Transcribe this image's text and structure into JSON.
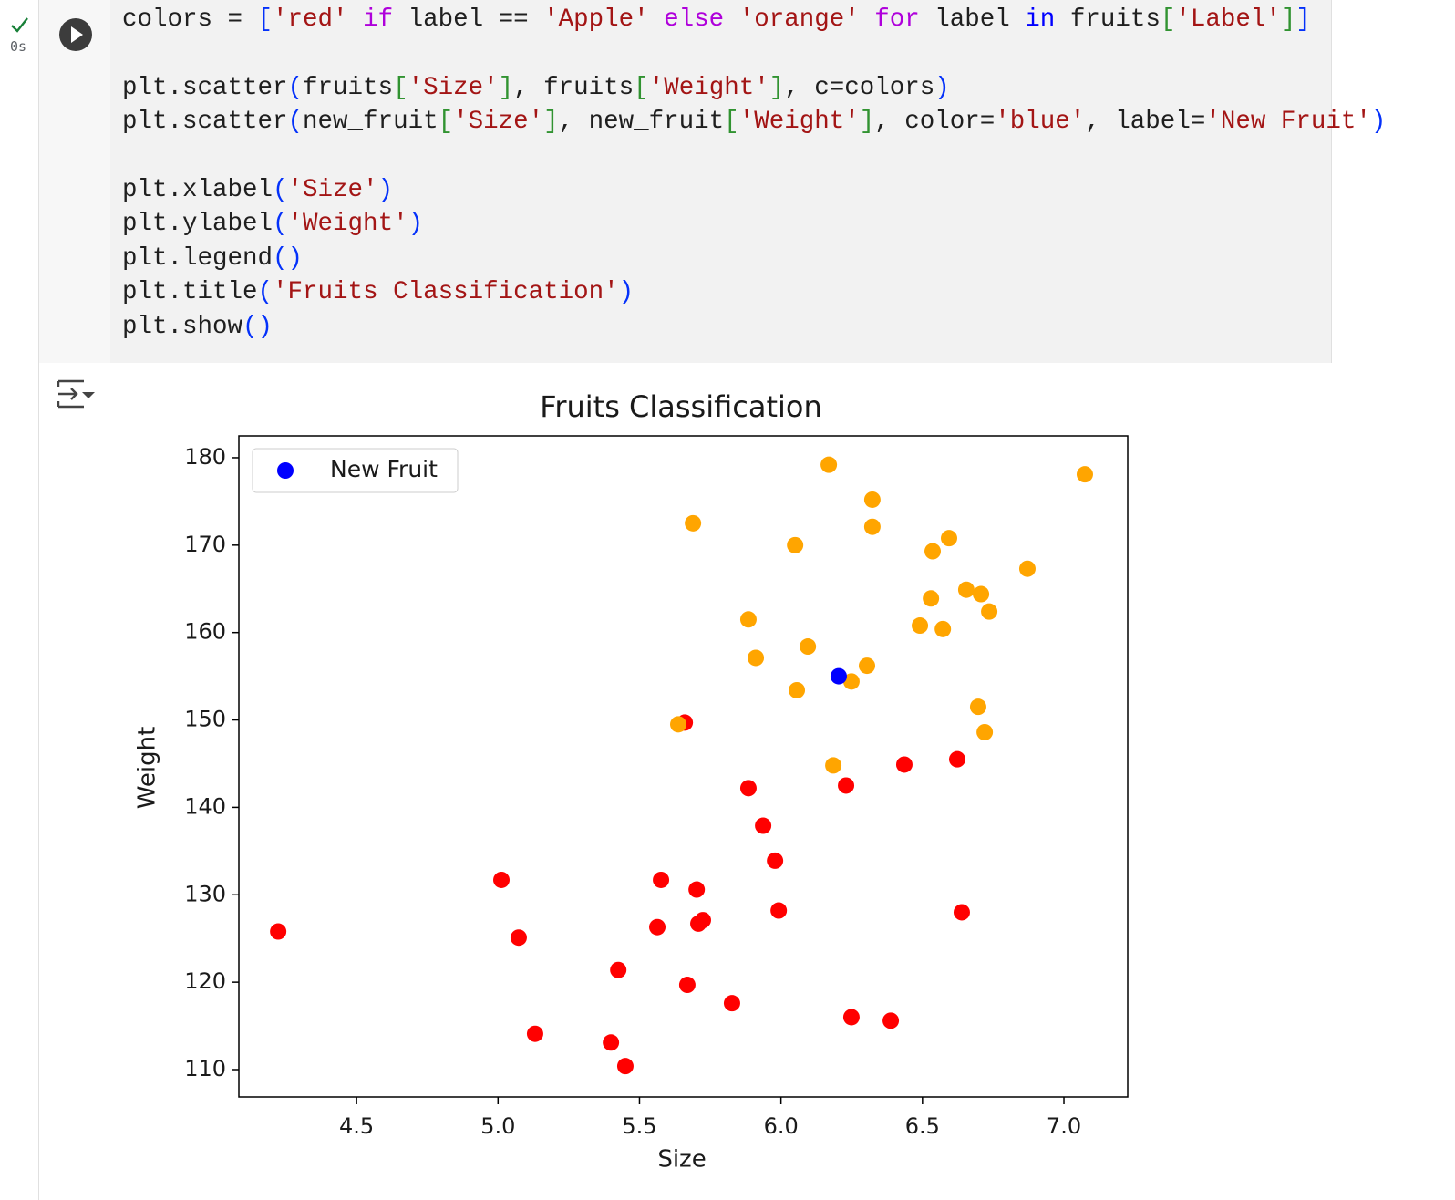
{
  "cell": {
    "execution_time": "0s",
    "code_lines": [
      [
        {
          "text": "colors = ",
          "color": "#1f1f1f"
        },
        {
          "text": "[",
          "color": "#0431fa"
        },
        {
          "text": "'red'",
          "color": "#a31515"
        },
        {
          "text": " ",
          "color": "#1f1f1f"
        },
        {
          "text": "if",
          "color": "#af00db"
        },
        {
          "text": " label == ",
          "color": "#1f1f1f"
        },
        {
          "text": "'Apple'",
          "color": "#a31515"
        },
        {
          "text": " ",
          "color": "#1f1f1f"
        },
        {
          "text": "else",
          "color": "#af00db"
        },
        {
          "text": " ",
          "color": "#1f1f1f"
        },
        {
          "text": "'orange'",
          "color": "#a31515"
        },
        {
          "text": " ",
          "color": "#1f1f1f"
        },
        {
          "text": "for",
          "color": "#af00db"
        },
        {
          "text": " label ",
          "color": "#1f1f1f"
        },
        {
          "text": "in",
          "color": "#0000ff"
        },
        {
          "text": " fruits",
          "color": "#1f1f1f"
        },
        {
          "text": "[",
          "color": "#319331"
        },
        {
          "text": "'Label'",
          "color": "#a31515"
        },
        {
          "text": "]",
          "color": "#319331"
        },
        {
          "text": "]",
          "color": "#0431fa"
        }
      ],
      [],
      [
        {
          "text": "plt.scatter",
          "color": "#1f1f1f"
        },
        {
          "text": "(",
          "color": "#0431fa"
        },
        {
          "text": "fruits",
          "color": "#1f1f1f"
        },
        {
          "text": "[",
          "color": "#319331"
        },
        {
          "text": "'Size'",
          "color": "#a31515"
        },
        {
          "text": "]",
          "color": "#319331"
        },
        {
          "text": ", fruits",
          "color": "#1f1f1f"
        },
        {
          "text": "[",
          "color": "#319331"
        },
        {
          "text": "'Weight'",
          "color": "#a31515"
        },
        {
          "text": "]",
          "color": "#319331"
        },
        {
          "text": ", c=colors",
          "color": "#1f1f1f"
        },
        {
          "text": ")",
          "color": "#0431fa"
        }
      ],
      [
        {
          "text": "plt.scatter",
          "color": "#1f1f1f"
        },
        {
          "text": "(",
          "color": "#0431fa"
        },
        {
          "text": "new_fruit",
          "color": "#1f1f1f"
        },
        {
          "text": "[",
          "color": "#319331"
        },
        {
          "text": "'Size'",
          "color": "#a31515"
        },
        {
          "text": "]",
          "color": "#319331"
        },
        {
          "text": ", new_fruit",
          "color": "#1f1f1f"
        },
        {
          "text": "[",
          "color": "#319331"
        },
        {
          "text": "'Weight'",
          "color": "#a31515"
        },
        {
          "text": "]",
          "color": "#319331"
        },
        {
          "text": ", color=",
          "color": "#1f1f1f"
        },
        {
          "text": "'blue'",
          "color": "#a31515"
        },
        {
          "text": ", label=",
          "color": "#1f1f1f"
        },
        {
          "text": "'New Fruit'",
          "color": "#a31515"
        },
        {
          "text": ")",
          "color": "#0431fa"
        }
      ],
      [],
      [
        {
          "text": "plt.xlabel",
          "color": "#1f1f1f"
        },
        {
          "text": "(",
          "color": "#0431fa"
        },
        {
          "text": "'Size'",
          "color": "#a31515"
        },
        {
          "text": ")",
          "color": "#0431fa"
        }
      ],
      [
        {
          "text": "plt.ylabel",
          "color": "#1f1f1f"
        },
        {
          "text": "(",
          "color": "#0431fa"
        },
        {
          "text": "'Weight'",
          "color": "#a31515"
        },
        {
          "text": ")",
          "color": "#0431fa"
        }
      ],
      [
        {
          "text": "plt.legend",
          "color": "#1f1f1f"
        },
        {
          "text": "()",
          "color": "#0431fa"
        }
      ],
      [
        {
          "text": "plt.title",
          "color": "#1f1f1f"
        },
        {
          "text": "(",
          "color": "#0431fa"
        },
        {
          "text": "'Fruits Classification'",
          "color": "#a31515"
        },
        {
          "text": ")",
          "color": "#0431fa"
        }
      ],
      [
        {
          "text": "plt.show",
          "color": "#1f1f1f"
        },
        {
          "text": "()",
          "color": "#0431fa"
        }
      ]
    ]
  },
  "chart_data": {
    "type": "scatter",
    "title": "Fruits Classification",
    "x_label": "Size",
    "y_label": "Weight",
    "xlim": [
      4.084,
      7.2255
    ],
    "ylim": [
      106.87,
      182.5
    ],
    "xticks": [
      4.5,
      {
        "value": 5,
        "label": "5.0"
      },
      5.5,
      {
        "value": 6,
        "label": "6.0"
      },
      6.5,
      {
        "value": 7,
        "label": "7.0"
      }
    ],
    "yticks": [
      110,
      120,
      130,
      140,
      150,
      160,
      170,
      180
    ],
    "legend": "upper left",
    "grid": false,
    "series": [
      {
        "color": "#ff0000",
        "x": [
          5.66,
          6.623,
          6.436,
          6.23,
          5.885,
          5.937,
          5.979,
          5.012,
          5.576,
          5.702,
          5.992,
          6.639,
          4.223,
          5.073,
          5.563,
          5.724,
          5.708,
          5.425,
          5.669,
          5.827,
          5.131,
          6.249,
          6.388,
          5.399,
          5.45
        ],
        "values": [
          149.7,
          145.5,
          144.9,
          142.5,
          142.2,
          137.9,
          133.9,
          131.7,
          131.7,
          130.6,
          128.2,
          128.0,
          125.8,
          125.1,
          126.3,
          127.1,
          126.7,
          121.4,
          119.7,
          117.6,
          114.1,
          116.0,
          115.6,
          113.1,
          110.4
        ]
      },
      {
        "color": "#ffa500",
        "x": [
          6.169,
          7.074,
          6.323,
          5.689,
          6.323,
          6.05,
          6.594,
          6.536,
          6.871,
          6.655,
          6.707,
          6.53,
          6.736,
          5.885,
          6.491,
          6.572,
          6.095,
          5.911,
          6.304,
          6.249,
          6.056,
          6.697,
          5.637,
          6.72,
          6.185
        ],
        "values": [
          179.2,
          178.1,
          175.2,
          172.5,
          172.1,
          170.0,
          170.8,
          169.3,
          167.3,
          164.9,
          164.4,
          163.9,
          162.4,
          161.5,
          160.8,
          160.4,
          158.4,
          157.1,
          156.2,
          154.4,
          153.4,
          151.5,
          149.5,
          148.6,
          144.8
        ]
      },
      {
        "name": "New Fruit",
        "color": "#0000ff",
        "x": [
          6.204
        ],
        "values": [
          155.0
        ]
      }
    ]
  }
}
